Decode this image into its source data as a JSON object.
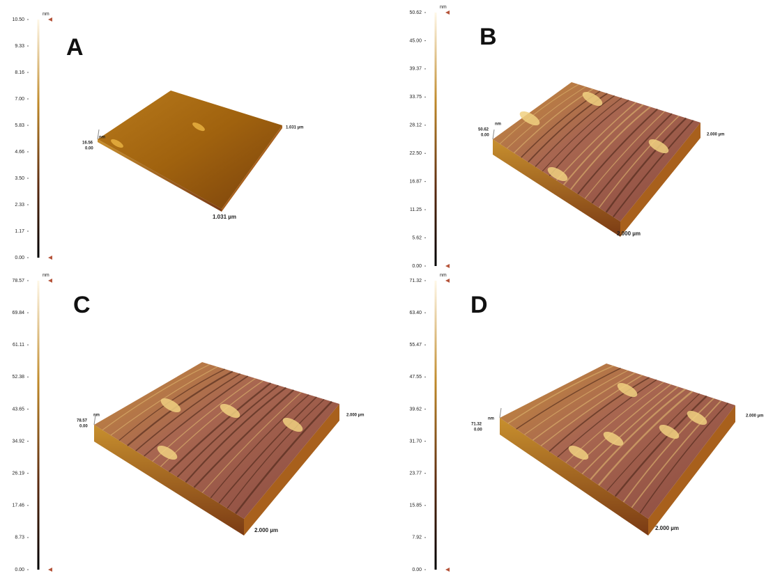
{
  "panels": [
    {
      "label": "A",
      "scale_unit": "nm",
      "scale_ticks": [
        "10.50",
        "9.33",
        "8.16",
        "7.00",
        "5.83",
        "4.66",
        "3.50",
        "2.33",
        "1.17",
        "0.00"
      ],
      "surface_unit": "nm",
      "surface_max": "16.56",
      "surface_min": "0.00",
      "side_extent": "1.031 µm",
      "front_extent": "1.031 µm"
    },
    {
      "label": "B",
      "scale_unit": "nm",
      "scale_ticks": [
        "50.62",
        "45.00",
        "39.37",
        "33.75",
        "28.12",
        "22.50",
        "16.87",
        "11.25",
        "5.62",
        "0.00"
      ],
      "surface_unit": "nm",
      "surface_max": "50.62",
      "surface_min": "0.00",
      "side_extent": "2.000 µm",
      "front_extent": "2.000 µm"
    },
    {
      "label": "C",
      "scale_unit": "nm",
      "scale_ticks": [
        "78.57",
        "69.84",
        "61.11",
        "52.38",
        "43.65",
        "34.92",
        "26.19",
        "17.46",
        "8.73",
        "0.00"
      ],
      "surface_unit": "nm",
      "surface_max": "78.57",
      "surface_min": "0.00",
      "side_extent": "2.000 µm",
      "front_extent": "2.000 µm"
    },
    {
      "label": "D",
      "scale_unit": "nm",
      "scale_ticks": [
        "71.32",
        "63.40",
        "55.47",
        "47.55",
        "39.62",
        "31.70",
        "23.77",
        "15.85",
        "7.92",
        "0.00"
      ],
      "surface_unit": "nm",
      "surface_max": "71.32",
      "surface_min": "0.00",
      "side_extent": "2.000 µm",
      "front_extent": "2.000 µm"
    }
  ]
}
